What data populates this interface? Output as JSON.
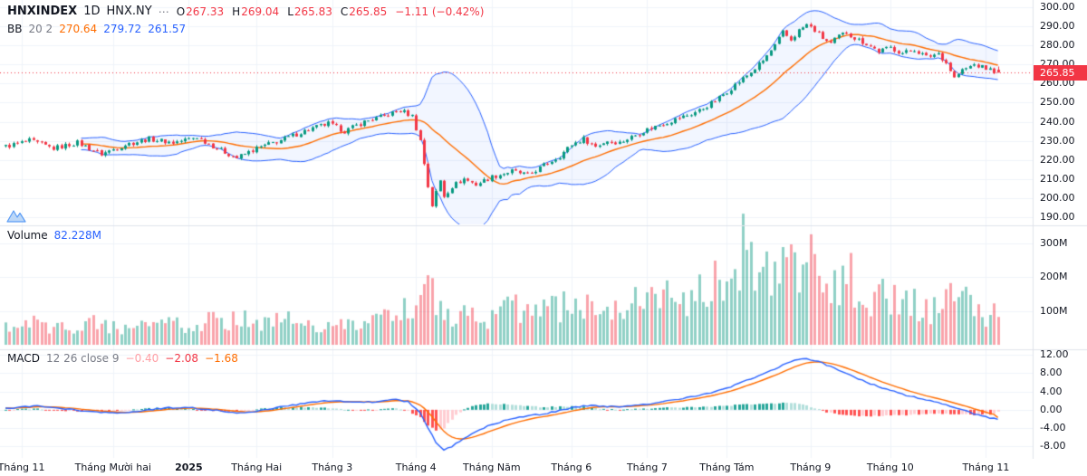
{
  "header": {
    "symbol": "HNXINDEX",
    "interval": "1D",
    "exchange": "HNX.NY",
    "more_icon": "⋯",
    "ohlc": {
      "o_label": "O",
      "o": "267.33",
      "h_label": "H",
      "h": "269.04",
      "l_label": "L",
      "l": "265.83",
      "c_label": "C",
      "c": "265.85",
      "change": "−1.11 (−0.42%)"
    },
    "bb": {
      "name": "BB",
      "params": "20 2",
      "basis": "270.64",
      "upper": "279.72",
      "lower": "261.57"
    }
  },
  "volume_pane": {
    "label": "Volume",
    "value": "82.228M"
  },
  "macd_pane": {
    "label": "MACD",
    "params": "12 26 close 9",
    "hist": "−0.40",
    "macd": "−2.08",
    "signal": "−1.68"
  },
  "price_axis": {
    "labels": [
      {
        "value": 300,
        "text": "300.00"
      },
      {
        "value": 290,
        "text": "290.00"
      },
      {
        "value": 280,
        "text": "280.00"
      },
      {
        "value": 270,
        "text": "270.00"
      },
      {
        "value": 260,
        "text": "260.00"
      },
      {
        "value": 250,
        "text": "250.00"
      },
      {
        "value": 240,
        "text": "240.00"
      },
      {
        "value": 230,
        "text": "230.00"
      },
      {
        "value": 220,
        "text": "220.00"
      },
      {
        "value": 210,
        "text": "210.00"
      },
      {
        "value": 200,
        "text": "200.00"
      },
      {
        "value": 190,
        "text": "190.00"
      }
    ],
    "last_price": {
      "value": 265.85,
      "text": "265.85"
    }
  },
  "volume_axis": {
    "labels": [
      {
        "value": 300,
        "text": "300M"
      },
      {
        "value": 200,
        "text": "200M"
      },
      {
        "value": 100,
        "text": "100M"
      }
    ]
  },
  "macd_axis": {
    "labels": [
      {
        "value": 12,
        "text": "12.00"
      },
      {
        "value": 8,
        "text": "8.00"
      },
      {
        "value": 4,
        "text": "4.00"
      },
      {
        "value": 0,
        "text": "0.00"
      },
      {
        "value": -4,
        "text": "-4.00"
      },
      {
        "value": -8,
        "text": "-8.00"
      }
    ]
  },
  "time_axis": {
    "labels": [
      {
        "bar": 4,
        "text": "Tháng 11",
        "bold": false
      },
      {
        "bar": 27,
        "text": "Tháng Mười hai",
        "bold": false
      },
      {
        "bar": 46,
        "text": "2025",
        "bold": true
      },
      {
        "bar": 63,
        "text": "Tháng Hai",
        "bold": false
      },
      {
        "bar": 82,
        "text": "Tháng 3",
        "bold": false
      },
      {
        "bar": 103,
        "text": "Tháng 4",
        "bold": false
      },
      {
        "bar": 122,
        "text": "Tháng Năm",
        "bold": false
      },
      {
        "bar": 142,
        "text": "Tháng 6",
        "bold": false
      },
      {
        "bar": 161,
        "text": "Tháng 7",
        "bold": false
      },
      {
        "bar": 181,
        "text": "Tháng Tám",
        "bold": false
      },
      {
        "bar": 202,
        "text": "Tháng 9",
        "bold": false
      },
      {
        "bar": 222,
        "text": "Tháng 10",
        "bold": false
      },
      {
        "bar": 246,
        "text": "Tháng 11",
        "bold": false
      }
    ]
  },
  "colors": {
    "background": "#ffffff",
    "grid": "#f0f3fa",
    "separator": "#e0e3eb",
    "text_primary": "#131722",
    "text_secondary": "#787b86",
    "up": "#089981",
    "down": "#f23645",
    "bb_band": "#2962ff",
    "bb_basis": "#ff6d00",
    "bb_fill": "rgba(41,98,255,0.06)",
    "vol_up": "rgba(8,153,129,0.45)",
    "vol_down": "rgba(242,54,69,0.45)",
    "macd_line": "#2962ff",
    "signal_line": "#ff6d00",
    "hist_up_grow": "#26a69a",
    "hist_up_fall": "#b2dfdb",
    "hist_down_grow": "#ffcdd2",
    "hist_down_fall": "#ff5252",
    "price_line": "#f23645",
    "badge_bg": "#f23645",
    "badge_text": "#ffffff"
  },
  "chart_data": {
    "type": "candlestick+volume+macd",
    "title": "HNXINDEX 1D HNX.NY with Bollinger Bands, Volume, MACD",
    "bars": 250,
    "price_range": [
      186,
      304
    ],
    "volume_range_m": [
      0,
      350
    ],
    "macd_range": [
      -10.5,
      13
    ],
    "price_line_value": 265.85,
    "last_candle": {
      "open": 267.33,
      "high": 269.04,
      "low": 265.83,
      "close": 265.85
    },
    "last_volume_m": 82.228,
    "last_macd": {
      "macd": -2.08,
      "signal": -1.68,
      "hist": -0.4
    },
    "bb": {
      "period": 20,
      "stdev": 2
    },
    "noise": {
      "close": 1.3,
      "open": 0.7,
      "wick": 1.0,
      "volume": 0.45,
      "macd": 0.15
    },
    "close_waypoints": [
      [
        0,
        227
      ],
      [
        6,
        230
      ],
      [
        12,
        226
      ],
      [
        18,
        229
      ],
      [
        24,
        223
      ],
      [
        30,
        228
      ],
      [
        36,
        231
      ],
      [
        42,
        229
      ],
      [
        48,
        232
      ],
      [
        53,
        226
      ],
      [
        58,
        221
      ],
      [
        63,
        226
      ],
      [
        70,
        231
      ],
      [
        76,
        236
      ],
      [
        81,
        239
      ],
      [
        85,
        235
      ],
      [
        90,
        240
      ],
      [
        95,
        243
      ],
      [
        99,
        246
      ],
      [
        102,
        243
      ],
      [
        104,
        230
      ],
      [
        105,
        218
      ],
      [
        106,
        206
      ],
      [
        107,
        196
      ],
      [
        108,
        203
      ],
      [
        109,
        209
      ],
      [
        110,
        201
      ],
      [
        112,
        206
      ],
      [
        115,
        210
      ],
      [
        118,
        207
      ],
      [
        122,
        211
      ],
      [
        127,
        214
      ],
      [
        131,
        212
      ],
      [
        135,
        217
      ],
      [
        139,
        222
      ],
      [
        142,
        228
      ],
      [
        145,
        231
      ],
      [
        148,
        227
      ],
      [
        151,
        230
      ],
      [
        154,
        229
      ],
      [
        157,
        232
      ],
      [
        161,
        236
      ],
      [
        165,
        239
      ],
      [
        169,
        242
      ],
      [
        172,
        244
      ],
      [
        175,
        247
      ],
      [
        178,
        251
      ],
      [
        181,
        256
      ],
      [
        184,
        261
      ],
      [
        187,
        266
      ],
      [
        190,
        272
      ],
      [
        193,
        280
      ],
      [
        195,
        287
      ],
      [
        197,
        283
      ],
      [
        199,
        288
      ],
      [
        201,
        291
      ],
      [
        203,
        288
      ],
      [
        205,
        284
      ],
      [
        207,
        281
      ],
      [
        209,
        285
      ],
      [
        211,
        287
      ],
      [
        213,
        284
      ],
      [
        216,
        281
      ],
      [
        219,
        277
      ],
      [
        222,
        279
      ],
      [
        225,
        276
      ],
      [
        228,
        278
      ],
      [
        231,
        274
      ],
      [
        234,
        276
      ],
      [
        236,
        271
      ],
      [
        238,
        263
      ],
      [
        240,
        267
      ],
      [
        243,
        270
      ],
      [
        246,
        268
      ],
      [
        249,
        265.85
      ]
    ],
    "volume_waypoints_m": [
      [
        0,
        55
      ],
      [
        8,
        60
      ],
      [
        15,
        48
      ],
      [
        22,
        62
      ],
      [
        30,
        55
      ],
      [
        38,
        65
      ],
      [
        45,
        58
      ],
      [
        52,
        68
      ],
      [
        58,
        75
      ],
      [
        64,
        60
      ],
      [
        70,
        70
      ],
      [
        78,
        65
      ],
      [
        85,
        72
      ],
      [
        92,
        68
      ],
      [
        98,
        85
      ],
      [
        102,
        110
      ],
      [
        105,
        150
      ],
      [
        107,
        140
      ],
      [
        110,
        100
      ],
      [
        114,
        85
      ],
      [
        118,
        75
      ],
      [
        123,
        90
      ],
      [
        128,
        105
      ],
      [
        133,
        95
      ],
      [
        138,
        105
      ],
      [
        142,
        120
      ],
      [
        146,
        110
      ],
      [
        150,
        100
      ],
      [
        155,
        115
      ],
      [
        160,
        125
      ],
      [
        164,
        135
      ],
      [
        168,
        130
      ],
      [
        172,
        145
      ],
      [
        176,
        160
      ],
      [
        180,
        185
      ],
      [
        183,
        230
      ],
      [
        185,
        310
      ],
      [
        187,
        225
      ],
      [
        189,
        195
      ],
      [
        191,
        255
      ],
      [
        193,
        265
      ],
      [
        195,
        235
      ],
      [
        197,
        215
      ],
      [
        199,
        185
      ],
      [
        201,
        230
      ],
      [
        203,
        245
      ],
      [
        205,
        210
      ],
      [
        207,
        165
      ],
      [
        209,
        185
      ],
      [
        211,
        200
      ],
      [
        213,
        175
      ],
      [
        215,
        150
      ],
      [
        217,
        135
      ],
      [
        220,
        155
      ],
      [
        223,
        125
      ],
      [
        226,
        135
      ],
      [
        229,
        115
      ],
      [
        232,
        105
      ],
      [
        235,
        140
      ],
      [
        237,
        195
      ],
      [
        239,
        165
      ],
      [
        241,
        130
      ],
      [
        243,
        115
      ],
      [
        245,
        100
      ],
      [
        247,
        90
      ],
      [
        249,
        82.228
      ]
    ],
    "macd_waypoints": [
      [
        0,
        0.3
      ],
      [
        8,
        0.8
      ],
      [
        15,
        0.2
      ],
      [
        22,
        -0.5
      ],
      [
        28,
        -0.8
      ],
      [
        34,
        -0.2
      ],
      [
        40,
        0.4
      ],
      [
        46,
        0.5
      ],
      [
        52,
        0.0
      ],
      [
        58,
        -0.7
      ],
      [
        64,
        -0.2
      ],
      [
        70,
        0.8
      ],
      [
        76,
        1.5
      ],
      [
        82,
        2.0
      ],
      [
        87,
        1.6
      ],
      [
        92,
        1.7
      ],
      [
        97,
        2.3
      ],
      [
        101,
        1.8
      ],
      [
        104,
        -0.5
      ],
      [
        106,
        -4.0
      ],
      [
        108,
        -7.0
      ],
      [
        110,
        -8.8
      ],
      [
        112,
        -8.0
      ],
      [
        115,
        -6.2
      ],
      [
        118,
        -4.8
      ],
      [
        122,
        -3.2
      ],
      [
        126,
        -2.2
      ],
      [
        130,
        -1.5
      ],
      [
        134,
        -1.0
      ],
      [
        138,
        -0.4
      ],
      [
        142,
        0.4
      ],
      [
        146,
        0.9
      ],
      [
        150,
        0.8
      ],
      [
        154,
        0.6
      ],
      [
        158,
        0.9
      ],
      [
        162,
        1.4
      ],
      [
        166,
        2.0
      ],
      [
        170,
        2.5
      ],
      [
        174,
        3.1
      ],
      [
        178,
        3.9
      ],
      [
        182,
        5.0
      ],
      [
        186,
        6.4
      ],
      [
        190,
        7.8
      ],
      [
        194,
        9.3
      ],
      [
        197,
        10.5
      ],
      [
        200,
        11.2
      ],
      [
        203,
        10.8
      ],
      [
        206,
        9.8
      ],
      [
        210,
        8.4
      ],
      [
        214,
        6.8
      ],
      [
        218,
        5.4
      ],
      [
        222,
        4.2
      ],
      [
        226,
        3.2
      ],
      [
        230,
        2.4
      ],
      [
        234,
        1.6
      ],
      [
        238,
        0.6
      ],
      [
        241,
        -0.3
      ],
      [
        244,
        -1.1
      ],
      [
        247,
        -1.8
      ],
      [
        249,
        -2.08
      ]
    ]
  }
}
